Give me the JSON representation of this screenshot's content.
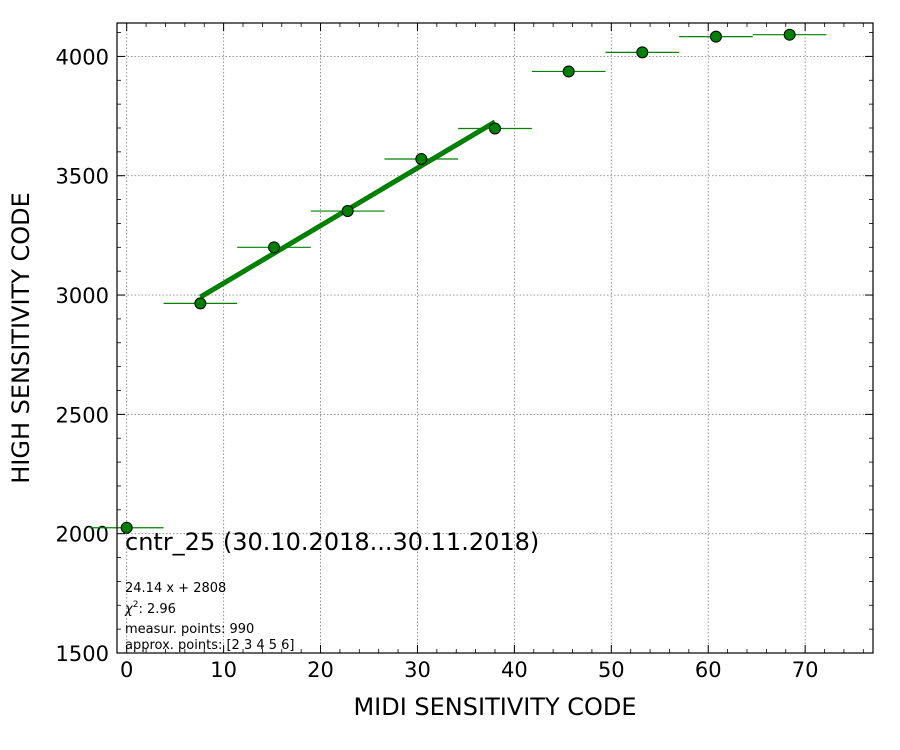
{
  "chart_data": {
    "type": "scatter",
    "title": "cntr_25 (30.10.2018...30.11.2018)",
    "xlabel": "MIDI SENSITIVITY CODE",
    "ylabel": "HIGH SENSITIVITY CODE",
    "xlim": [
      -1,
      77
    ],
    "ylim": [
      1500,
      4140
    ],
    "xticks": [
      0,
      10,
      20,
      30,
      40,
      50,
      60,
      70
    ],
    "yticks": [
      1500,
      2000,
      2500,
      3000,
      3500,
      4000
    ],
    "grid": true,
    "series": [
      {
        "type": "scatter",
        "color": "#008000",
        "points": [
          {
            "x": 0.0,
            "y": 2025,
            "xerr": 3.8,
            "yerr": 6
          },
          {
            "x": 7.6,
            "y": 2965,
            "xerr": 3.8,
            "yerr": 8
          },
          {
            "x": 15.2,
            "y": 3200,
            "xerr": 3.8,
            "yerr": 18
          },
          {
            "x": 22.8,
            "y": 3352,
            "xerr": 3.8,
            "yerr": 18
          },
          {
            "x": 30.4,
            "y": 3570,
            "xerr": 3.8,
            "yerr": 18
          },
          {
            "x": 38.0,
            "y": 3698,
            "xerr": 3.8,
            "yerr": 22
          },
          {
            "x": 45.6,
            "y": 3937,
            "xerr": 3.8,
            "yerr": 6
          },
          {
            "x": 53.2,
            "y": 4017,
            "xerr": 3.8,
            "yerr": 6
          },
          {
            "x": 60.8,
            "y": 4083,
            "xerr": 3.8,
            "yerr": 6
          },
          {
            "x": 68.4,
            "y": 4091,
            "xerr": 3.8,
            "yerr": 6
          }
        ]
      },
      {
        "type": "line",
        "color": "#008000",
        "slope": 24.14,
        "intercept": 2808,
        "x_range": [
          7.6,
          38.0
        ]
      }
    ],
    "annotations": [
      "24.14 x + 2808",
      "χ",
      "2",
      ": 2.96",
      "measur. points: 990",
      "approx. points: [2 3 4 5 6]"
    ]
  }
}
